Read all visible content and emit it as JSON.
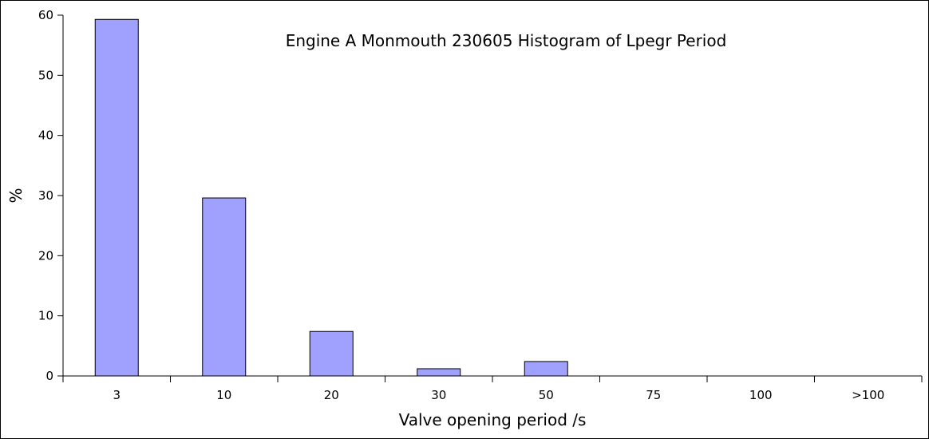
{
  "chart_data": {
    "type": "bar",
    "title": "Engine A Monmouth 230605  Histogram of Lpegr Period",
    "xlabel": "Valve opening period /s",
    "ylabel": "%",
    "categories": [
      "3",
      "10",
      "20",
      "30",
      "50",
      "75",
      "100",
      ">100"
    ],
    "values": [
      59.3,
      29.6,
      7.4,
      1.2,
      2.4,
      0,
      0,
      0
    ],
    "ylim": [
      0,
      60
    ],
    "yticks": [
      "0",
      "10",
      "20",
      "30",
      "40",
      "50",
      "60"
    ],
    "grid": false,
    "bar_color": "#a0a0ff",
    "bar_edge_color": "#000000"
  }
}
